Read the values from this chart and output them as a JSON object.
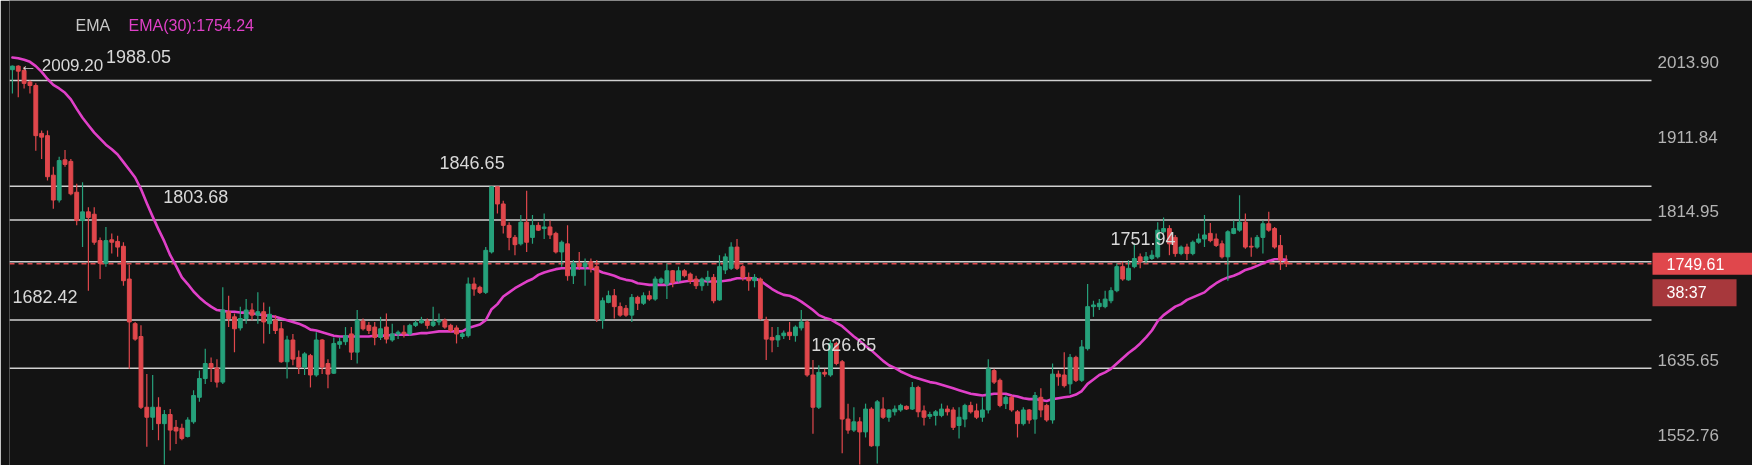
{
  "chart_data": {
    "type": "candlestick",
    "categories": [
      null,
      null,
      null,
      null,
      null,
      null,
      null,
      null,
      null,
      null,
      null,
      null,
      null,
      null,
      null,
      null,
      null,
      null,
      null,
      null,
      null,
      null,
      null,
      null,
      null,
      null,
      null,
      null,
      null,
      null,
      null,
      null,
      null,
      null,
      null,
      null,
      null,
      null,
      null,
      null,
      null,
      null,
      null,
      null,
      null,
      null,
      null,
      null,
      null,
      null,
      null,
      null,
      null,
      null,
      null,
      null,
      null,
      null,
      null,
      null,
      null,
      null,
      null,
      null,
      null,
      null,
      null,
      null,
      null,
      null,
      null,
      null,
      null,
      null,
      null,
      null,
      null,
      null,
      null,
      null,
      null,
      null,
      null,
      null,
      null,
      null,
      null,
      null,
      null,
      null,
      null,
      null,
      null,
      null,
      null,
      null,
      null,
      null,
      null,
      null,
      null,
      null,
      null,
      null,
      null,
      null,
      null,
      null,
      null,
      null,
      null,
      null,
      null,
      null,
      null,
      null,
      null,
      null,
      null,
      null,
      null,
      null,
      null,
      null,
      null,
      null,
      null,
      null,
      null,
      null,
      null,
      null,
      null,
      null,
      null,
      null,
      null,
      null,
      null,
      null,
      null,
      null,
      null,
      null,
      null,
      null,
      null,
      null,
      null,
      null,
      null,
      null,
      null,
      null,
      null,
      null,
      null,
      null,
      null,
      null,
      null,
      null,
      null,
      null,
      null,
      null,
      null,
      null,
      null,
      null,
      null,
      null,
      null,
      null,
      null,
      null,
      null,
      null,
      null,
      null,
      null,
      null,
      null,
      null,
      null,
      null,
      null,
      null,
      null,
      null,
      null,
      null,
      null,
      null,
      null,
      null,
      null,
      null,
      null,
      null,
      null,
      null,
      null,
      null,
      null,
      null,
      null,
      null,
      null,
      null,
      null,
      null,
      null,
      null,
      null,
      null,
      null,
      null,
      null,
      null,
      null,
      null,
      null,
      null,
      null,
      null,
      null,
      null,
      null,
      null,
      null,
      null,
      null,
      null,
      null,
      null,
      null,
      null,
      null,
      null,
      null,
      null,
      null,
      null,
      null,
      null,
      null,
      null,
      null,
      null,
      null,
      null,
      null,
      null,
      null,
      null,
      null,
      null,
      null,
      null,
      null,
      null,
      null,
      null,
      null,
      null,
      null,
      null,
      null,
      null,
      null,
      null,
      null,
      null,
      null,
      null,
      null,
      null,
      null,
      null,
      null
    ],
    "ohlc": [
      [
        2003,
        2009,
        1970,
        2008
      ],
      [
        2008,
        2009.2,
        1965,
        2001
      ],
      [
        2002,
        2007,
        1977,
        1984
      ],
      [
        1986,
        1988,
        1970,
        1981
      ],
      [
        1981,
        1984,
        1893,
        1913
      ],
      [
        1916,
        1920,
        1882,
        1911
      ],
      [
        1913,
        1920,
        1854,
        1859
      ],
      [
        1861,
        1872,
        1818,
        1829
      ],
      [
        1829,
        1885,
        1826,
        1880
      ],
      [
        1881,
        1894,
        1872,
        1875
      ],
      [
        1879,
        1882,
        1835,
        1837
      ],
      [
        1839,
        1850,
        1797,
        1803
      ],
      [
        1803,
        1852,
        1770,
        1814
      ],
      [
        1814,
        1820,
        1717,
        1807
      ],
      [
        1811,
        1820,
        1773,
        1776
      ],
      [
        1778,
        1782,
        1731,
        1750
      ],
      [
        1750,
        1795,
        1746,
        1778
      ],
      [
        1779,
        1787,
        1762,
        1776
      ],
      [
        1777,
        1784,
        1758,
        1770
      ],
      [
        1771,
        1776,
        1723,
        1729
      ],
      [
        1731,
        1748,
        1626,
        1680
      ],
      [
        1678,
        1680,
        1658,
        1660
      ],
      [
        1663,
        1676,
        1581,
        1583
      ],
      [
        1583,
        1620,
        1540,
        1572
      ],
      [
        1572,
        1619,
        1558,
        1583
      ],
      [
        1583,
        1594,
        1547,
        1565
      ],
      [
        1565,
        1580,
        1521,
        1575
      ],
      [
        1575,
        1581,
        1536,
        1558
      ],
      [
        1561,
        1569,
        1543,
        1557
      ],
      [
        1560,
        1565,
        1547,
        1549
      ],
      [
        1551,
        1572,
        1550,
        1569
      ],
      [
        1567,
        1602,
        1565,
        1596
      ],
      [
        1594,
        1624,
        1589,
        1615
      ],
      [
        1615,
        1649,
        1609,
        1632
      ],
      [
        1632,
        1639,
        1611,
        1627
      ],
      [
        1627,
        1637,
        1605,
        1611
      ],
      [
        1611,
        1721,
        1609,
        1694
      ],
      [
        1692,
        1711,
        1674,
        1684
      ],
      [
        1686,
        1690,
        1645,
        1672
      ],
      [
        1673,
        1698,
        1670,
        1684
      ],
      [
        1684,
        1707,
        1678,
        1694
      ],
      [
        1694,
        1702,
        1682,
        1688
      ],
      [
        1688,
        1715,
        1678,
        1692
      ],
      [
        1692,
        1703,
        1655,
        1680
      ],
      [
        1678,
        1698,
        1666,
        1689
      ],
      [
        1682,
        1688,
        1666,
        1670
      ],
      [
        1672,
        1680,
        1633,
        1634
      ],
      [
        1634,
        1664,
        1615,
        1659
      ],
      [
        1659,
        1666,
        1630,
        1637
      ],
      [
        1639,
        1647,
        1620,
        1628
      ],
      [
        1628,
        1645,
        1619,
        1643
      ],
      [
        1641,
        1643,
        1605,
        1619
      ],
      [
        1619,
        1668,
        1617,
        1659
      ],
      [
        1659,
        1660,
        1620,
        1628
      ],
      [
        1632,
        1637,
        1604,
        1620
      ],
      [
        1621,
        1662,
        1620,
        1655
      ],
      [
        1654,
        1662,
        1649,
        1657
      ],
      [
        1657,
        1674,
        1653,
        1664
      ],
      [
        1666,
        1674,
        1636,
        1645
      ],
      [
        1645,
        1694,
        1632,
        1682
      ],
      [
        1681,
        1684,
        1670,
        1672
      ],
      [
        1676,
        1680,
        1666,
        1670
      ],
      [
        1674,
        1680,
        1653,
        1662
      ],
      [
        1662,
        1686,
        1659,
        1672
      ],
      [
        1674,
        1690,
        1655,
        1660
      ],
      [
        1659,
        1678,
        1657,
        1666
      ],
      [
        1666,
        1670,
        1660,
        1668
      ],
      [
        1668,
        1676,
        1662,
        1666
      ],
      [
        1666,
        1678,
        1664,
        1676
      ],
      [
        1676,
        1682,
        1674,
        1679
      ],
      [
        1679,
        1686,
        1678,
        1682
      ],
      [
        1681,
        1684,
        1672,
        1676
      ],
      [
        1676,
        1698,
        1674,
        1680
      ],
      [
        1680,
        1690,
        1676,
        1682
      ],
      [
        1682,
        1684,
        1672,
        1674
      ],
      [
        1676,
        1678,
        1668,
        1670
      ],
      [
        1673,
        1676,
        1655,
        1666
      ],
      [
        1663,
        1668,
        1660,
        1666
      ],
      [
        1664,
        1733,
        1662,
        1725
      ],
      [
        1725,
        1733,
        1711,
        1719
      ],
      [
        1721,
        1723,
        1713,
        1715
      ],
      [
        1715,
        1770,
        1713,
        1766
      ],
      [
        1764,
        1846.65,
        1762,
        1846
      ],
      [
        1846,
        1846,
        1812,
        1824
      ],
      [
        1824,
        1828,
        1787,
        1797
      ],
      [
        1797,
        1801,
        1766,
        1782
      ],
      [
        1782,
        1785,
        1760,
        1773
      ],
      [
        1774,
        1810,
        1772,
        1801
      ],
      [
        1801,
        1841,
        1764,
        1776
      ],
      [
        1782,
        1810,
        1774,
        1797
      ],
      [
        1797,
        1801,
        1790,
        1791
      ],
      [
        1793,
        1812,
        1780,
        1795
      ],
      [
        1795,
        1803,
        1780,
        1785
      ],
      [
        1787,
        1789,
        1762,
        1764
      ],
      [
        1764,
        1778,
        1746,
        1776
      ],
      [
        1774,
        1797,
        1729,
        1735
      ],
      [
        1735,
        1754,
        1725,
        1750
      ],
      [
        1750,
        1764,
        1742,
        1746
      ],
      [
        1746,
        1756,
        1723,
        1750
      ],
      [
        1752,
        1756,
        1739,
        1744
      ],
      [
        1746,
        1754,
        1680,
        1683
      ],
      [
        1682,
        1709,
        1672,
        1705
      ],
      [
        1703,
        1717,
        1702,
        1711
      ],
      [
        1711,
        1719,
        1684,
        1698
      ],
      [
        1698,
        1703,
        1686,
        1688
      ],
      [
        1696,
        1700,
        1686,
        1688
      ],
      [
        1688,
        1713,
        1680,
        1709
      ],
      [
        1709,
        1711,
        1694,
        1702
      ],
      [
        1702,
        1715,
        1700,
        1711
      ],
      [
        1711,
        1717,
        1705,
        1707
      ],
      [
        1707,
        1734,
        1705,
        1731
      ],
      [
        1727,
        1733,
        1725,
        1731
      ],
      [
        1725,
        1750,
        1707,
        1741
      ],
      [
        1741,
        1742,
        1721,
        1727
      ],
      [
        1729,
        1746,
        1727,
        1741
      ],
      [
        1741,
        1743,
        1733,
        1735
      ],
      [
        1737,
        1739,
        1725,
        1729
      ],
      [
        1731,
        1735,
        1719,
        1723
      ],
      [
        1723,
        1733,
        1717,
        1731
      ],
      [
        1729,
        1741,
        1723,
        1733
      ],
      [
        1733,
        1737,
        1702,
        1705
      ],
      [
        1706,
        1760,
        1705,
        1746
      ],
      [
        1742,
        1762,
        1737,
        1758
      ],
      [
        1744,
        1776,
        1742,
        1770
      ],
      [
        1770,
        1780,
        1742,
        1744
      ],
      [
        1746,
        1748,
        1729,
        1733
      ],
      [
        1733,
        1739,
        1717,
        1729
      ],
      [
        1729,
        1737,
        1721,
        1733
      ],
      [
        1731,
        1733,
        1682,
        1684
      ],
      [
        1682,
        1686,
        1636,
        1660
      ],
      [
        1662,
        1674,
        1645,
        1659
      ],
      [
        1659,
        1674,
        1651,
        1664
      ],
      [
        1664,
        1670,
        1660,
        1667
      ],
      [
        1668,
        1680,
        1659,
        1664
      ],
      [
        1664,
        1676,
        1657,
        1674
      ],
      [
        1673,
        1694,
        1670,
        1680
      ],
      [
        1680,
        1682,
        1617,
        1619
      ],
      [
        1619,
        1636,
        1554,
        1583
      ],
      [
        1583,
        1630,
        1581,
        1622
      ],
      [
        1622,
        1626,
        1617,
        1620
      ],
      [
        1619,
        1659,
        1617,
        1655
      ],
      [
        1655,
        1657,
        1630,
        1632
      ],
      [
        1634,
        1636,
        1533,
        1570
      ],
      [
        1570,
        1587,
        1554,
        1558
      ],
      [
        1558,
        1583,
        1556,
        1567
      ],
      [
        1567,
        1572,
        1521,
        1556
      ],
      [
        1556,
        1587,
        1550,
        1581
      ],
      [
        1581,
        1583,
        1540,
        1541
      ],
      [
        1541,
        1591,
        1522,
        1589
      ],
      [
        1581,
        1594,
        1570,
        1572
      ],
      [
        1572,
        1581,
        1567,
        1580
      ],
      [
        1578,
        1585,
        1574,
        1581
      ],
      [
        1580,
        1587,
        1578,
        1585
      ],
      [
        1584,
        1585,
        1580,
        1581
      ],
      [
        1581,
        1611,
        1580,
        1605
      ],
      [
        1605,
        1607,
        1572,
        1578
      ],
      [
        1579,
        1585,
        1563,
        1572
      ],
      [
        1573,
        1578,
        1570,
        1575
      ],
      [
        1574,
        1580,
        1563,
        1578
      ],
      [
        1574,
        1587,
        1572,
        1581
      ],
      [
        1581,
        1585,
        1574,
        1578
      ],
      [
        1580,
        1583,
        1558,
        1561
      ],
      [
        1563,
        1583,
        1549,
        1572
      ],
      [
        1570,
        1587,
        1561,
        1585
      ],
      [
        1585,
        1589,
        1576,
        1578
      ],
      [
        1579,
        1587,
        1570,
        1572
      ],
      [
        1572,
        1594,
        1567,
        1580
      ],
      [
        1580,
        1637,
        1576,
        1626
      ],
      [
        1624,
        1626,
        1609,
        1611
      ],
      [
        1613,
        1615,
        1583,
        1585
      ],
      [
        1587,
        1596,
        1581,
        1594
      ],
      [
        1594,
        1596,
        1578,
        1580
      ],
      [
        1578,
        1580,
        1550,
        1565
      ],
      [
        1565,
        1583,
        1563,
        1580
      ],
      [
        1580,
        1581,
        1565,
        1569
      ],
      [
        1570,
        1600,
        1554,
        1596
      ],
      [
        1594,
        1604,
        1572,
        1580
      ],
      [
        1585,
        1587,
        1567,
        1569
      ],
      [
        1569,
        1632,
        1565,
        1620
      ],
      [
        1620,
        1624,
        1607,
        1617
      ],
      [
        1619,
        1645,
        1605,
        1607
      ],
      [
        1609,
        1643,
        1598,
        1639
      ],
      [
        1639,
        1641,
        1611,
        1613
      ],
      [
        1613,
        1659,
        1611,
        1651
      ],
      [
        1649,
        1725,
        1647,
        1698
      ],
      [
        1698,
        1705,
        1686,
        1700
      ],
      [
        1698,
        1707,
        1694,
        1702
      ],
      [
        1698,
        1717,
        1696,
        1707
      ],
      [
        1705,
        1721,
        1702,
        1717
      ],
      [
        1717,
        1750,
        1715,
        1746
      ],
      [
        1746,
        1752,
        1729,
        1731
      ],
      [
        1730,
        1754,
        1729,
        1744
      ],
      [
        1746,
        1774,
        1744,
        1756
      ],
      [
        1758,
        1762,
        1744,
        1752
      ],
      [
        1754,
        1764,
        1750,
        1758
      ],
      [
        1756,
        1766,
        1754,
        1760
      ],
      [
        1758,
        1801,
        1756,
        1791
      ],
      [
        1789,
        1807,
        1787,
        1793
      ],
      [
        1793,
        1797,
        1760,
        1774
      ],
      [
        1782,
        1785,
        1758,
        1762
      ],
      [
        1762,
        1772,
        1760,
        1770
      ],
      [
        1770,
        1774,
        1754,
        1762
      ],
      [
        1762,
        1778,
        1760,
        1776
      ],
      [
        1776,
        1787,
        1774,
        1780
      ],
      [
        1780,
        1810,
        1770,
        1785
      ],
      [
        1787,
        1800,
        1776,
        1778
      ],
      [
        1780,
        1787,
        1770,
        1772
      ],
      [
        1774,
        1778,
        1756,
        1758
      ],
      [
        1758,
        1791,
        1729,
        1789
      ],
      [
        1787,
        1803,
        1786,
        1793
      ],
      [
        1791,
        1835,
        1789,
        1801
      ],
      [
        1801,
        1812,
        1768,
        1770
      ],
      [
        1771,
        1782,
        1758,
        1770
      ],
      [
        1770,
        1785,
        1768,
        1782
      ],
      [
        1782,
        1803,
        1762,
        1799
      ],
      [
        1799,
        1814,
        1789,
        1791
      ],
      [
        1793,
        1795,
        1768,
        1770
      ],
      [
        1772,
        1785,
        1742,
        1754
      ],
      [
        1751.74,
        1759.89,
        1745.61,
        1749.61
      ],
      null,
      null,
      null,
      null,
      null,
      null,
      null,
      null,
      null,
      null,
      null,
      null,
      null,
      null,
      null,
      null,
      null,
      null,
      null,
      null,
      null,
      null,
      null,
      null,
      null,
      null,
      null,
      null,
      null,
      null,
      null,
      null,
      null,
      null,
      null,
      null,
      null,
      null,
      null,
      null,
      null,
      null,
      null,
      null,
      null,
      null,
      null,
      null,
      null,
      null,
      null,
      null,
      null,
      null,
      null,
      null,
      null,
      null,
      null,
      null,
      null,
      null
    ],
    "colors": [
      "#26a17b",
      "#e0474c",
      "#e0474c",
      "#e0474c",
      "#e0474c",
      "#e0474c",
      "#e0474c",
      "#e0474c",
      "#26a17b",
      "#e0474c",
      "#e0474c",
      "#e0474c",
      "#26a17b",
      "#e0474c",
      "#e0474c",
      "#e0474c",
      "#26a17b",
      "#e0474c",
      "#e0474c",
      "#e0474c",
      "#e0474c",
      "#e0474c",
      "#e0474c",
      "#e0474c",
      "#26a17b",
      "#e0474c",
      "#26a17b",
      "#e0474c",
      "#e0474c",
      "#e0474c",
      "#26a17b",
      "#26a17b",
      "#26a17b",
      "#26a17b",
      "#e0474c",
      "#e0474c",
      "#26a17b",
      "#e0474c",
      "#e0474c",
      "#26a17b",
      "#26a17b",
      "#e0474c",
      "#26a17b",
      "#e0474c",
      "#26a17b",
      "#e0474c",
      "#e0474c",
      "#26a17b",
      "#e0474c",
      "#e0474c",
      "#26a17b",
      "#e0474c",
      "#26a17b",
      "#e0474c",
      "#e0474c",
      "#26a17b",
      "#26a17b",
      "#26a17b",
      "#e0474c",
      "#26a17b",
      "#e0474c",
      "#e0474c",
      "#e0474c",
      "#26a17b",
      "#e0474c",
      "#26a17b",
      "#26a17b",
      "#e0474c",
      "#26a17b",
      "#26a17b",
      "#26a17b",
      "#e0474c",
      "#26a17b",
      "#26a17b",
      "#e0474c",
      "#e0474c",
      "#e0474c",
      "#26a17b",
      "#26a17b",
      "#e0474c",
      "#e0474c",
      "#26a17b",
      "#26a17b",
      "#e0474c",
      "#e0474c",
      "#e0474c",
      "#e0474c",
      "#26a17b",
      "#e0474c",
      "#26a17b",
      "#e0474c",
      "#26a17b",
      "#e0474c",
      "#e0474c",
      "#26a17b",
      "#e0474c",
      "#26a17b",
      "#e0474c",
      "#26a17b",
      "#e0474c",
      "#e0474c",
      "#26a17b",
      "#26a17b",
      "#e0474c",
      "#e0474c",
      "#e0474c",
      "#26a17b",
      "#e0474c",
      "#26a17b",
      "#e0474c",
      "#26a17b",
      "#26a17b",
      "#26a17b",
      "#e0474c",
      "#26a17b",
      "#e0474c",
      "#e0474c",
      "#e0474c",
      "#26a17b",
      "#26a17b",
      "#e0474c",
      "#26a17b",
      "#26a17b",
      "#26a17b",
      "#e0474c",
      "#e0474c",
      "#e0474c",
      "#26a17b",
      "#e0474c",
      "#e0474c",
      "#e0474c",
      "#26a17b",
      "#26a17b",
      "#e0474c",
      "#26a17b",
      "#26a17b",
      "#e0474c",
      "#e0474c",
      "#26a17b",
      "#e0474c",
      "#26a17b",
      "#e0474c",
      "#e0474c",
      "#e0474c",
      "#26a17b",
      "#e0474c",
      "#26a17b",
      "#e0474c",
      "#26a17b",
      "#e0474c",
      "#26a17b",
      "#26a17b",
      "#26a17b",
      "#e0474c",
      "#26a17b",
      "#e0474c",
      "#e0474c",
      "#26a17b",
      "#26a17b",
      "#26a17b",
      "#e0474c",
      "#e0474c",
      "#26a17b",
      "#26a17b",
      "#e0474c",
      "#e0474c",
      "#26a17b",
      "#26a17b",
      "#e0474c",
      "#e0474c",
      "#26a17b",
      "#e0474c",
      "#e0474c",
      "#26a17b",
      "#e0474c",
      "#26a17b",
      "#e0474c",
      "#e0474c",
      "#26a17b",
      "#e0474c",
      "#e0474c",
      "#26a17b",
      "#e0474c",
      "#26a17b",
      "#26a17b",
      "#26a17b",
      "#26a17b",
      "#26a17b",
      "#26a17b",
      "#26a17b",
      "#e0474c",
      "#26a17b",
      "#26a17b",
      "#e0474c",
      "#26a17b",
      "#26a17b",
      "#26a17b",
      "#26a17b",
      "#e0474c",
      "#e0474c",
      "#26a17b",
      "#e0474c",
      "#26a17b",
      "#26a17b",
      "#26a17b",
      "#e0474c",
      "#e0474c",
      "#e0474c",
      "#26a17b",
      "#26a17b",
      "#26a17b",
      "#e0474c",
      "#e0474c",
      "#26a17b",
      "#26a17b",
      "#e0474c",
      "#e0474c",
      "#e0474c",
      "#e0474c",
      null,
      null,
      null,
      null,
      null,
      null,
      null,
      null,
      null,
      null,
      null,
      null,
      null,
      null,
      null,
      null,
      null,
      null,
      null,
      null,
      null,
      null,
      null,
      null,
      null,
      null,
      null,
      null,
      null,
      null,
      null,
      null,
      null,
      null,
      null,
      null,
      null,
      null,
      null,
      null,
      null,
      null,
      null,
      null,
      null,
      null,
      null,
      null,
      null,
      null,
      null,
      null,
      null,
      null,
      null,
      null,
      null,
      null,
      null,
      null,
      null,
      null
    ],
    "series": [
      {
        "name": "EMA(30):1754.24",
        "type": "line",
        "color": "#e040c8",
        "values": [
          2020,
          2019,
          2017,
          2014,
          2008,
          2000,
          1990,
          1982,
          1977,
          1971,
          1962,
          1949,
          1937,
          1927,
          1917,
          1909,
          1901,
          1895,
          1888,
          1878,
          1868,
          1858,
          1843,
          1825,
          1808,
          1792,
          1777,
          1760,
          1747,
          1733,
          1725,
          1716,
          1709,
          1703,
          1698,
          1694,
          1693,
          1692,
          1692,
          1691,
          1691,
          1690,
          1689,
          1688,
          1687,
          1686,
          1684,
          1682,
          1680,
          1678,
          1675,
          1671,
          1670,
          1668,
          1666,
          1664,
          1663,
          1663,
          1663,
          1663,
          1663,
          1663,
          1664,
          1664,
          1664,
          1665,
          1665,
          1665,
          1665,
          1666,
          1667,
          1667,
          1668,
          1669,
          1669,
          1669,
          1669,
          1669,
          1673,
          1675,
          1677,
          1682,
          1695,
          1701,
          1710,
          1715,
          1720,
          1724,
          1728,
          1731,
          1736,
          1739,
          1741,
          1743,
          1744,
          1744,
          1744,
          1744,
          1744,
          1744,
          1742,
          1739,
          1737,
          1735,
          1732,
          1730,
          1729,
          1726,
          1725,
          1724,
          1724,
          1724,
          1724,
          1726,
          1727,
          1728,
          1729,
          1729,
          1729,
          1728,
          1728,
          1728,
          1729,
          1730,
          1732,
          1732,
          1732,
          1732,
          1729,
          1724,
          1719,
          1715,
          1712,
          1711,
          1708,
          1704,
          1699,
          1694,
          1688,
          1685,
          1683,
          1679,
          1675,
          1669,
          1663,
          1658,
          1652,
          1647,
          1641,
          1635,
          1630,
          1627,
          1623,
          1620,
          1617,
          1615,
          1613,
          1611,
          1610,
          1608,
          1606,
          1604,
          1602,
          1600,
          1598,
          1597,
          1596,
          1597,
          1598,
          1598,
          1598,
          1596,
          1595,
          1593,
          1592,
          1592,
          1591,
          1590,
          1592,
          1593,
          1594,
          1595,
          1597,
          1601,
          1609,
          1614,
          1619,
          1622,
          1626,
          1632,
          1638,
          1644,
          1649,
          1655,
          1662,
          1670,
          1681,
          1688,
          1693,
          1698,
          1701,
          1706,
          1709,
          1712,
          1715,
          1721,
          1726,
          1730,
          1733,
          1735,
          1738,
          1742,
          1744,
          1747,
          1750,
          1753,
          1755,
          1755,
          1754.24,
          null,
          null,
          null,
          null,
          null,
          null,
          null,
          null,
          null,
          null,
          null,
          null,
          null,
          null,
          null,
          null,
          null,
          null,
          null,
          null,
          null,
          null,
          null,
          null,
          null,
          null,
          null,
          null,
          null,
          null,
          null,
          null,
          null,
          null,
          null,
          null,
          null,
          null,
          null,
          null,
          null,
          null,
          null,
          null,
          null,
          null,
          null,
          null,
          null,
          null,
          null,
          null,
          null,
          null,
          null,
          null,
          null,
          null,
          null,
          null,
          null,
          null
        ]
      }
    ],
    "legend_title": "EMA",
    "legend": "top left",
    "ylim": [
      1520,
      2102
    ],
    "log": true,
    "yticks": [
      1552.76,
      1635.65,
      1814.95,
      1911.84,
      {
        "value": 2013.9,
        "label": "2013.90"
      }
    ],
    "tick_labels": "y",
    "ref_lines": [
      {
        "axis": "y",
        "value": 1988.05,
        "label": "1988.05",
        "color": "#d0d0d0"
      },
      {
        "axis": "y",
        "value": 1846.65,
        "label": "1846.65",
        "color": "#d0d0d0"
      },
      {
        "axis": "y",
        "value": 1803.68,
        "label": "1803.68",
        "color": "#d0d0d0"
      },
      {
        "axis": "y",
        "value": 1751.94,
        "label": "1751.94",
        "color": "#d0d0d0"
      },
      {
        "axis": "y",
        "value": 1749.61,
        "label": "1749.61",
        "color": "#e0474c",
        "line_style": "dashed"
      },
      {
        "axis": "y",
        "value": 1682.42,
        "label": "1682.42",
        "color": "#d0d0d0"
      },
      {
        "axis": "y",
        "value": 1626.65,
        "label": "1626.65",
        "color": "#d0d0d0"
      }
    ],
    "annotations": [
      "← 2009.20",
      "38:37"
    ]
  }
}
